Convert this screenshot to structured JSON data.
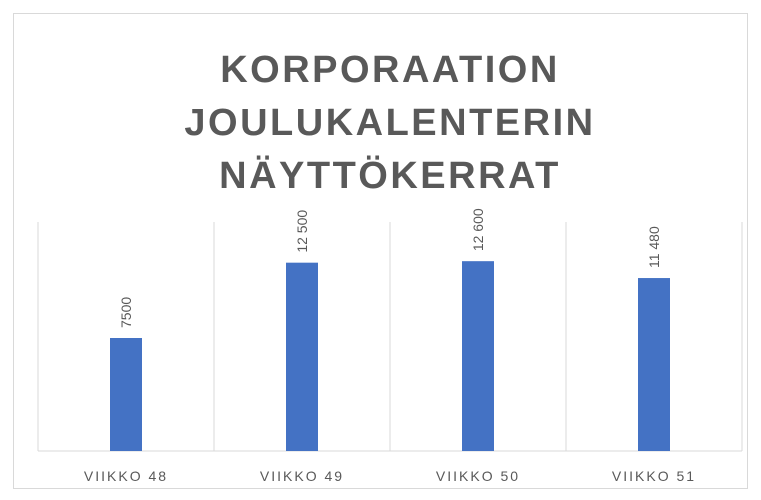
{
  "chart_data": {
    "type": "bar",
    "title": "KORPORAATION JOULUKALENTERIN NÄYTTÖKERRAT",
    "categories": [
      "VIIKKO 48",
      "VIIKKO 49",
      "VIIKKO 50",
      "VIIKKO 51"
    ],
    "values": [
      7500,
      12500,
      12600,
      11480
    ],
    "value_labels": [
      "7500",
      "12 500",
      "12 600",
      "11 480"
    ],
    "color": "#4472c4",
    "ylim": [
      0,
      15200
    ]
  }
}
